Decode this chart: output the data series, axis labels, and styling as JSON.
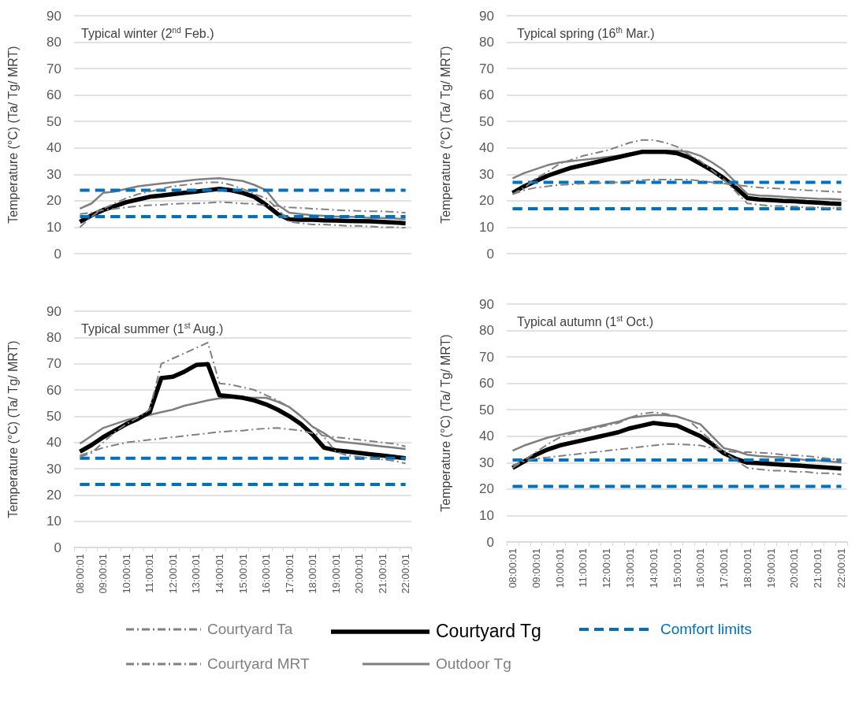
{
  "chart_data": [
    {
      "type": "line",
      "title": "Typical winter (2$^{nd}$ Feb.)",
      "ylabel": "Temperature (°C) (Ta/ Tg/ MRT)",
      "categories": [
        null,
        null,
        null,
        null,
        null,
        null,
        null,
        null,
        null,
        null,
        null,
        null,
        null,
        null,
        null,
        null,
        null,
        null,
        null,
        null,
        null,
        null,
        null,
        null,
        null,
        null,
        null,
        null,
        null
      ],
      "ylim": [
        0,
        90
      ],
      "yticks": [
        0,
        10,
        20,
        30,
        40,
        50,
        60,
        70,
        80,
        90
      ],
      "grid": "y",
      "marker": "none",
      "tick_labels": "y",
      "legend": "bottom",
      "series": [
        {
          "name": "Courtyard Ta",
          "color": "#808080",
          "line_style": "dashed",
          "values": [
            15,
            15.5,
            16.5,
            17,
            17.5,
            18,
            18.3,
            18.5,
            18.8,
            19,
            19,
            19.2,
            19.5,
            19.3,
            19,
            18.8,
            18.3,
            18,
            17.5,
            17.3,
            17,
            16.8,
            16.5,
            16.3,
            16.2,
            16,
            16,
            15.8,
            15.5
          ]
        },
        {
          "name": "Courtyard Tg",
          "color": "#000000",
          "line_style": "solid",
          "values": [
            12,
            14.5,
            16.5,
            18,
            19.5,
            20.5,
            21.5,
            22,
            22.5,
            23,
            23.5,
            24,
            24.5,
            24,
            23,
            21.5,
            18.5,
            15,
            13,
            12.8,
            12.8,
            12.6,
            12.5,
            12.4,
            12.3,
            12.2,
            12,
            11.8,
            11.5
          ]
        },
        {
          "name": "Comfort limits",
          "color": "#0070c0",
          "line_style": "dashed",
          "values": [
            24,
            24,
            24,
            24,
            24,
            24,
            24,
            24,
            24,
            24,
            24,
            24,
            24,
            24,
            24,
            24,
            24,
            24,
            24,
            24,
            24,
            24,
            24,
            24,
            24,
            24,
            24,
            24,
            24
          ]
        },
        {
          "name": "Courtyard MRT",
          "color": "#808080",
          "line_style": "dashed",
          "values": [
            10,
            14,
            17,
            19,
            21,
            22.5,
            23.5,
            24.5,
            25.5,
            26,
            26.5,
            27,
            27,
            26,
            24.5,
            22.5,
            21,
            17,
            12,
            11.5,
            11,
            11,
            10.8,
            10.5,
            10.5,
            10.3,
            10,
            10,
            9.8
          ]
        },
        {
          "name": "Outdoor Tg",
          "color": "#7f7f7f",
          "line_style": "solid",
          "values": [
            17,
            19,
            23,
            23.5,
            24.5,
            25.5,
            26,
            26.5,
            27,
            27.5,
            28,
            28.3,
            28.5,
            28,
            27.5,
            26,
            24,
            18.5,
            15.5,
            15,
            14.5,
            14.3,
            14,
            14,
            13.8,
            13.5,
            13.5,
            13.3,
            13
          ]
        },
        {
          "color": "#0070c0",
          "line_style": "dashed",
          "values": [
            14,
            14,
            14,
            14,
            14,
            14,
            14,
            14,
            14,
            14,
            14,
            14,
            14,
            14,
            14,
            14,
            14,
            14,
            14,
            14,
            14,
            14,
            14,
            14,
            14,
            14,
            14,
            14,
            14
          ]
        }
      ]
    },
    {
      "type": "line",
      "title": "Typical spring (16$^{th}$ Mar.)",
      "ylabel": "Temperature (°C) (Ta/ Tg/ MRT)",
      "categories": [
        null,
        null,
        null,
        null,
        null,
        null,
        null,
        null,
        null,
        null,
        null,
        null,
        null,
        null,
        null,
        null,
        null,
        null,
        null,
        null,
        null,
        null,
        null,
        null,
        null,
        null,
        null,
        null,
        null
      ],
      "ylim": [
        0,
        90
      ],
      "yticks": [
        0,
        10,
        20,
        30,
        40,
        50,
        60,
        70,
        80,
        90
      ],
      "grid": "y",
      "marker": "none",
      "tick_labels": "y",
      "series": [
        {
          "color": "#808080",
          "line_style": "dashed",
          "values": [
            22.5,
            24,
            25,
            25.5,
            26,
            26.2,
            26.5,
            26.5,
            27,
            27,
            27.5,
            27.8,
            28,
            28,
            28,
            28,
            27.5,
            27,
            26.5,
            26,
            25.5,
            25,
            24.8,
            24.5,
            24.3,
            24,
            23.8,
            23.5,
            23.3
          ]
        },
        {
          "color": "#000000",
          "line_style": "solid",
          "values": [
            23,
            25.5,
            27.5,
            29.5,
            31,
            32.5,
            33.5,
            34.5,
            35.5,
            36.5,
            37.5,
            38.5,
            38.5,
            38.5,
            38,
            36.5,
            34,
            31.5,
            28.5,
            25,
            21,
            20.5,
            20.3,
            20,
            19.8,
            19.5,
            19.3,
            19,
            18.8
          ]
        },
        {
          "color": "#0070c0",
          "line_style": "dashed",
          "values": [
            27,
            27,
            27,
            27,
            27,
            27,
            27,
            27,
            27,
            27,
            27,
            27,
            27,
            27,
            27,
            27,
            27,
            27,
            27,
            27,
            27,
            27,
            27,
            27,
            27,
            27,
            27,
            27,
            27
          ]
        },
        {
          "color": "#808080",
          "line_style": "dashed",
          "values": [
            22.5,
            25,
            28.5,
            31,
            34,
            35.5,
            37,
            38,
            39,
            40.5,
            42,
            43,
            43,
            42,
            40.5,
            37.5,
            35,
            31.5,
            28,
            23.5,
            19,
            18.5,
            18,
            18,
            17.8,
            17.5,
            17.5,
            17.3,
            17
          ]
        },
        {
          "color": "#7f7f7f",
          "line_style": "solid",
          "values": [
            28.5,
            30.5,
            32,
            33.5,
            34.5,
            35,
            35.5,
            36,
            36.5,
            37,
            38,
            38.5,
            39,
            39,
            39,
            38.5,
            37,
            34.5,
            31.5,
            27,
            22.5,
            22,
            21.8,
            21.5,
            21.2,
            21,
            20.8,
            20.7,
            20.5
          ]
        },
        {
          "color": "#0070c0",
          "line_style": "dashed",
          "values": [
            17,
            17,
            17,
            17,
            17,
            17,
            17,
            17,
            17,
            17,
            17,
            17,
            17,
            17,
            17,
            17,
            17,
            17,
            17,
            17,
            17,
            17,
            17,
            17,
            17,
            17,
            17,
            17,
            17
          ]
        }
      ]
    },
    {
      "type": "line",
      "title": "Typical summer (1$^{st}$ Aug.)",
      "ylabel": "Temperature (°C) (Ta/ Tg/ MRT)",
      "categories": [
        "08:00:01",
        null,
        "09:00:01",
        null,
        "10:00:01",
        null,
        "11:00:01",
        null,
        "12:00:01",
        null,
        "13:00:01",
        null,
        "14:00:01",
        null,
        "15:00:01",
        null,
        "16:00:01",
        null,
        "17:00:01",
        null,
        "18:00:01",
        null,
        "19:00:01",
        null,
        "20:00:01",
        null,
        "21:00:01",
        null,
        "22:00:01"
      ],
      "ylim": [
        0,
        90
      ],
      "yticks": [
        0,
        10,
        20,
        30,
        40,
        50,
        60,
        70,
        80,
        90
      ],
      "grid": "y",
      "marker": "none",
      "series": [
        {
          "color": "#808080",
          "line_style": "dashed",
          "values": [
            35,
            36.5,
            38,
            39,
            40,
            40.5,
            41,
            41.5,
            42,
            42.5,
            43,
            43.5,
            44,
            44.3,
            44.5,
            45,
            45.3,
            45.5,
            45,
            44.5,
            43.5,
            42.5,
            42,
            41.5,
            41,
            40.5,
            40,
            39.5,
            38.5
          ]
        },
        {
          "color": "#000000",
          "line_style": "solid",
          "values": [
            36.5,
            39,
            42,
            44.5,
            47,
            49,
            51.5,
            64.5,
            65,
            67,
            69.5,
            69.8,
            58,
            57.5,
            57,
            56,
            54.5,
            52.5,
            50,
            47,
            43,
            38,
            37,
            36.5,
            36,
            35.5,
            35,
            34.5,
            34
          ]
        },
        {
          "color": "#0070c0",
          "line_style": "dashed",
          "values": [
            34,
            34,
            34,
            34,
            34,
            34,
            34,
            34,
            34,
            34,
            34,
            34,
            34,
            34,
            34,
            34,
            34,
            34,
            34,
            34,
            34,
            34,
            34,
            34,
            34,
            34,
            34,
            34,
            34
          ]
        },
        {
          "color": "#808080",
          "line_style": "dashed",
          "values": [
            34.5,
            36,
            40,
            44,
            47,
            49.5,
            52.5,
            70,
            72,
            74,
            76,
            78,
            62.5,
            62,
            61,
            60,
            58,
            56,
            53.5,
            50,
            46,
            42,
            36.5,
            35,
            34.5,
            34,
            33.5,
            33,
            32
          ]
        },
        {
          "color": "#7f7f7f",
          "line_style": "solid",
          "values": [
            39.5,
            42.5,
            45.5,
            47,
            48.5,
            49.5,
            50.5,
            51.5,
            52.5,
            54,
            55,
            56,
            56.8,
            57,
            57.2,
            57,
            57,
            55.5,
            53.5,
            50,
            46,
            43.5,
            40.5,
            40,
            39.5,
            39,
            38.5,
            38,
            37.5
          ]
        },
        {
          "color": "#0070c0",
          "line_style": "dashed",
          "values": [
            24,
            24,
            24,
            24,
            24,
            24,
            24,
            24,
            24,
            24,
            24,
            24,
            24,
            24,
            24,
            24,
            24,
            24,
            24,
            24,
            24,
            24,
            24,
            24,
            24,
            24,
            24,
            24,
            24
          ]
        }
      ]
    },
    {
      "type": "line",
      "title": "Typical autumn (1$^{st}$ Oct.)",
      "ylabel": "Temperature (°C) (Ta/ Tg/ MRT)",
      "categories": [
        "08:00:01",
        null,
        "09:00:01",
        null,
        "10:00:01",
        null,
        "11:00:01",
        null,
        "12:00:01",
        null,
        "13:00:01",
        null,
        "14:00:01",
        null,
        "15:00:01",
        null,
        "16:00:01",
        null,
        "17:00:01",
        null,
        "18:00:01",
        null,
        "19:00:01",
        null,
        "20:00:01",
        null,
        "21:00:01",
        null,
        "22:00:01"
      ],
      "ylim": [
        0,
        90
      ],
      "yticks": [
        0,
        10,
        20,
        30,
        40,
        50,
        60,
        70,
        80,
        90
      ],
      "grid": "y",
      "marker": "none",
      "series": [
        {
          "color": "#808080",
          "line_style": "dashed",
          "values": [
            29,
            30.5,
            31.5,
            32,
            32.5,
            33,
            33.5,
            34,
            34.5,
            35,
            35.5,
            36,
            36.5,
            37,
            37,
            36.8,
            36.5,
            35.5,
            34.5,
            34,
            34,
            33.8,
            33.5,
            33,
            32.8,
            32.5,
            32,
            31.5,
            31
          ]
        },
        {
          "color": "#000000",
          "line_style": "solid",
          "values": [
            28,
            30.5,
            33,
            35,
            36.5,
            37.5,
            38.5,
            39.5,
            40.5,
            41.5,
            43,
            44,
            45,
            44.5,
            44,
            42,
            40,
            37,
            33.5,
            31.5,
            30,
            29.8,
            29.5,
            29.2,
            29,
            28.7,
            28.4,
            28.1,
            27.8
          ]
        },
        {
          "color": "#0070c0",
          "line_style": "dashed",
          "values": [
            31,
            31,
            31,
            31,
            31,
            31,
            31,
            31,
            31,
            31,
            31,
            31,
            31,
            31,
            31,
            31,
            31,
            31,
            31,
            31,
            31,
            31,
            31,
            31,
            31,
            31,
            31,
            31,
            31
          ]
        },
        {
          "color": "#808080",
          "line_style": "dashed",
          "values": [
            28,
            31,
            34,
            37,
            39.5,
            41,
            42,
            43,
            44,
            45,
            47,
            48.5,
            49,
            48.5,
            47.5,
            46,
            42,
            38,
            34,
            31,
            28,
            27.5,
            27,
            27,
            26.5,
            26.5,
            26,
            26,
            25.5
          ]
        },
        {
          "color": "#7f7f7f",
          "line_style": "solid",
          "values": [
            34.5,
            36.5,
            38,
            39.5,
            40.5,
            41.5,
            42.5,
            43.5,
            44.5,
            45.5,
            47,
            47.5,
            48,
            48,
            47.5,
            46,
            44.5,
            40,
            35.5,
            34.5,
            33,
            32.5,
            32.2,
            32,
            31.5,
            31,
            30.8,
            30.5,
            30
          ]
        },
        {
          "color": "#0070c0",
          "line_style": "dashed",
          "values": [
            21,
            21,
            21,
            21,
            21,
            21,
            21,
            21,
            21,
            21,
            21,
            21,
            21,
            21,
            21,
            21,
            21,
            21,
            21,
            21,
            21,
            21,
            21,
            21,
            21,
            21,
            21,
            21,
            21
          ]
        }
      ]
    }
  ]
}
